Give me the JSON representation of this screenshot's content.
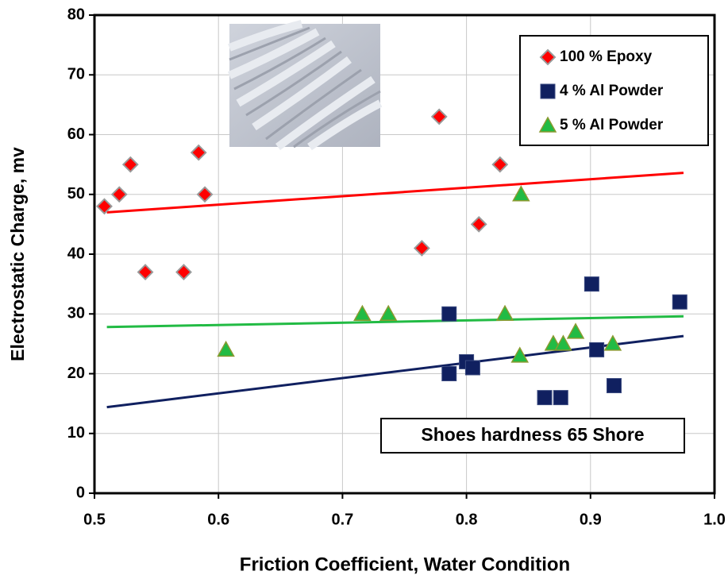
{
  "chart_data": {
    "type": "scatter",
    "xlabel": "Friction Coefficient, Water  Condition",
    "ylabel": "Electrostatic Charge, mv",
    "annotation": "Shoes hardness 65 Shore",
    "xlim": [
      0.5,
      1.0
    ],
    "ylim": [
      0,
      80
    ],
    "xticks": [
      0.5,
      0.6,
      0.7,
      0.8,
      0.9,
      {
        "value": 1.0,
        "label": "1.0"
      }
    ],
    "yticks": [
      0,
      10,
      20,
      30,
      40,
      50,
      60,
      70,
      80
    ],
    "grid": true,
    "legend": "upper right",
    "series": [
      {
        "name": "100 % Epoxy",
        "color": "#ff0000",
        "marker": "diamond",
        "x": [
          0.508,
          0.52,
          0.529,
          0.541,
          0.572,
          0.584,
          0.589,
          0.764,
          0.778,
          0.81,
          0.827
        ],
        "values": [
          48,
          50,
          55,
          37,
          37,
          57,
          50,
          41,
          63,
          45,
          55
        ],
        "trendline": {
          "x": [
            0.51,
            0.975
          ],
          "y": [
            47,
            53.6
          ]
        }
      },
      {
        "name": "4 % Al Powder",
        "color": "#102060",
        "marker": "square",
        "x": [
          0.786,
          0.786,
          0.8,
          0.805,
          0.863,
          0.876,
          0.901,
          0.905,
          0.919,
          0.972
        ],
        "values": [
          30,
          20,
          22,
          21,
          16,
          16,
          35,
          24,
          18,
          32
        ],
        "trendline": {
          "x": [
            0.51,
            0.975
          ],
          "y": [
            14.4,
            26.3
          ]
        }
      },
      {
        "name": "5 % Al Powder",
        "color": "#22bb44",
        "marker": "triangle",
        "x": [
          0.606,
          0.716,
          0.737,
          0.831,
          0.843,
          0.844,
          0.87,
          0.878,
          0.888,
          0.918
        ],
        "values": [
          24,
          30,
          30,
          30,
          23,
          50,
          25,
          25,
          27,
          25
        ],
        "trendline": {
          "x": [
            0.51,
            0.975
          ],
          "y": [
            27.8,
            29.6
          ]
        }
      }
    ]
  }
}
